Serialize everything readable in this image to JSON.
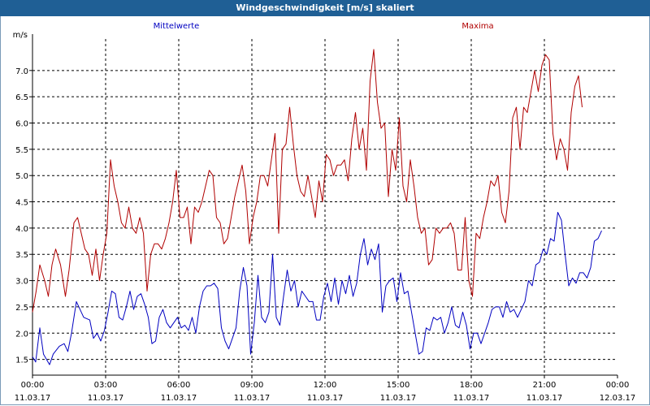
{
  "window": {
    "title": "Windgeschwindigkeit [m/s] skaliert"
  },
  "chart_data": {
    "type": "line",
    "ylabel": "m/s",
    "ylim": [
      1.2,
      7.6
    ],
    "yticks": [
      1.5,
      2.0,
      2.5,
      3.0,
      3.5,
      4.0,
      4.5,
      5.0,
      5.5,
      6.0,
      6.5,
      7.0
    ],
    "ytick_labels": [
      "1.5",
      "2.0",
      "2.5",
      "3.0",
      "3.5",
      "4.0",
      "4.5",
      "5.0",
      "5.5",
      "6.0",
      "6.5",
      "7.0"
    ],
    "xlim": [
      0,
      24
    ],
    "xticks": [
      {
        "hours": 0,
        "time": "00:00",
        "date": "11.03.17"
      },
      {
        "hours": 3,
        "time": "03:00",
        "date": "11.03.17"
      },
      {
        "hours": 6,
        "time": "06:00",
        "date": "11.03.17"
      },
      {
        "hours": 9,
        "time": "09:00",
        "date": "11.03.17"
      },
      {
        "hours": 12,
        "time": "12:00",
        "date": "11.03.17"
      },
      {
        "hours": 15,
        "time": "15:00",
        "date": "11.03.17"
      },
      {
        "hours": 18,
        "time": "18:00",
        "date": "11.03.17"
      },
      {
        "hours": 21,
        "time": "21:00",
        "date": "11.03.17"
      },
      {
        "hours": 24,
        "time": "00:00",
        "date": "12.03.17"
      }
    ],
    "grid": true,
    "series": [
      {
        "name": "Mittelwerte",
        "color": "#0000c0",
        "points": [
          [
            0.0,
            1.55
          ],
          [
            0.13,
            1.45
          ],
          [
            0.3,
            2.1
          ],
          [
            0.45,
            1.6
          ],
          [
            0.7,
            1.4
          ],
          [
            0.85,
            1.6
          ],
          [
            1.1,
            1.75
          ],
          [
            1.3,
            1.8
          ],
          [
            1.45,
            1.65
          ],
          [
            1.6,
            2.0
          ],
          [
            1.8,
            2.6
          ],
          [
            1.95,
            2.45
          ],
          [
            2.1,
            2.3
          ],
          [
            2.35,
            2.25
          ],
          [
            2.5,
            1.9
          ],
          [
            2.65,
            2.0
          ],
          [
            2.8,
            1.85
          ],
          [
            2.95,
            2.05
          ],
          [
            3.1,
            2.4
          ],
          [
            3.25,
            2.8
          ],
          [
            3.4,
            2.75
          ],
          [
            3.55,
            2.3
          ],
          [
            3.7,
            2.25
          ],
          [
            3.85,
            2.5
          ],
          [
            4.0,
            2.8
          ],
          [
            4.15,
            2.45
          ],
          [
            4.3,
            2.7
          ],
          [
            4.45,
            2.75
          ],
          [
            4.6,
            2.55
          ],
          [
            4.75,
            2.3
          ],
          [
            4.9,
            1.8
          ],
          [
            5.05,
            1.85
          ],
          [
            5.2,
            2.3
          ],
          [
            5.35,
            2.45
          ],
          [
            5.5,
            2.2
          ],
          [
            5.65,
            2.1
          ],
          [
            5.8,
            2.2
          ],
          [
            5.95,
            2.3
          ],
          [
            6.1,
            2.1
          ],
          [
            6.25,
            2.15
          ],
          [
            6.4,
            2.05
          ],
          [
            6.55,
            2.3
          ],
          [
            6.7,
            2.0
          ],
          [
            6.85,
            2.5
          ],
          [
            7.0,
            2.8
          ],
          [
            7.15,
            2.9
          ],
          [
            7.3,
            2.9
          ],
          [
            7.45,
            2.95
          ],
          [
            7.6,
            2.85
          ],
          [
            7.75,
            2.1
          ],
          [
            7.9,
            1.85
          ],
          [
            8.05,
            1.7
          ],
          [
            8.2,
            1.9
          ],
          [
            8.35,
            2.1
          ],
          [
            8.5,
            2.8
          ],
          [
            8.65,
            3.25
          ],
          [
            8.8,
            2.9
          ],
          [
            8.95,
            1.6
          ],
          [
            9.1,
            2.2
          ],
          [
            9.25,
            3.1
          ],
          [
            9.4,
            2.3
          ],
          [
            9.55,
            2.2
          ],
          [
            9.7,
            2.4
          ],
          [
            9.85,
            3.5
          ],
          [
            10.0,
            2.3
          ],
          [
            10.15,
            2.15
          ],
          [
            10.3,
            2.7
          ],
          [
            10.45,
            3.2
          ],
          [
            10.6,
            2.8
          ],
          [
            10.75,
            3.0
          ],
          [
            10.9,
            2.5
          ],
          [
            11.05,
            2.8
          ],
          [
            11.2,
            2.7
          ],
          [
            11.35,
            2.6
          ],
          [
            11.5,
            2.6
          ],
          [
            11.65,
            2.25
          ],
          [
            11.8,
            2.25
          ],
          [
            11.95,
            2.7
          ],
          [
            12.1,
            2.95
          ],
          [
            12.25,
            2.6
          ],
          [
            12.4,
            3.05
          ],
          [
            12.55,
            2.55
          ],
          [
            12.7,
            3.0
          ],
          [
            12.85,
            2.75
          ],
          [
            13.0,
            3.1
          ],
          [
            13.15,
            2.7
          ],
          [
            13.3,
            2.95
          ],
          [
            13.45,
            3.5
          ],
          [
            13.6,
            3.8
          ],
          [
            13.75,
            3.3
          ],
          [
            13.9,
            3.6
          ],
          [
            14.05,
            3.4
          ],
          [
            14.2,
            3.7
          ],
          [
            14.35,
            2.4
          ],
          [
            14.5,
            2.9
          ],
          [
            14.65,
            3.0
          ],
          [
            14.8,
            3.05
          ],
          [
            14.95,
            2.6
          ],
          [
            15.1,
            3.15
          ],
          [
            15.25,
            2.75
          ],
          [
            15.4,
            2.8
          ],
          [
            15.55,
            2.4
          ],
          [
            15.7,
            2.0
          ],
          [
            15.85,
            1.6
          ],
          [
            16.0,
            1.65
          ],
          [
            16.15,
            2.1
          ],
          [
            16.3,
            2.05
          ],
          [
            16.45,
            2.3
          ],
          [
            16.6,
            2.25
          ],
          [
            16.75,
            2.3
          ],
          [
            16.9,
            2.0
          ],
          [
            17.05,
            2.2
          ],
          [
            17.2,
            2.5
          ],
          [
            17.35,
            2.15
          ],
          [
            17.5,
            2.1
          ],
          [
            17.65,
            2.4
          ],
          [
            17.8,
            2.15
          ],
          [
            17.95,
            1.7
          ],
          [
            18.1,
            2.0
          ],
          [
            18.25,
            2.0
          ],
          [
            18.4,
            1.8
          ],
          [
            18.55,
            2.0
          ],
          [
            18.7,
            2.2
          ],
          [
            18.85,
            2.45
          ],
          [
            19.0,
            2.5
          ],
          [
            19.15,
            2.5
          ],
          [
            19.3,
            2.3
          ],
          [
            19.45,
            2.6
          ],
          [
            19.6,
            2.4
          ],
          [
            19.75,
            2.45
          ],
          [
            19.9,
            2.3
          ],
          [
            20.05,
            2.45
          ],
          [
            20.2,
            2.6
          ],
          [
            20.35,
            3.0
          ],
          [
            20.5,
            2.9
          ],
          [
            20.65,
            3.3
          ],
          [
            20.8,
            3.35
          ],
          [
            20.95,
            3.6
          ],
          [
            21.1,
            3.5
          ],
          [
            21.25,
            3.8
          ],
          [
            21.4,
            3.75
          ],
          [
            21.55,
            4.3
          ],
          [
            21.7,
            4.15
          ],
          [
            21.85,
            3.5
          ],
          [
            22.0,
            2.9
          ],
          [
            22.15,
            3.05
          ],
          [
            22.3,
            2.95
          ],
          [
            22.45,
            3.15
          ],
          [
            22.6,
            3.15
          ],
          [
            22.75,
            3.05
          ],
          [
            22.9,
            3.25
          ],
          [
            23.05,
            3.75
          ],
          [
            23.2,
            3.8
          ],
          [
            23.35,
            3.95
          ]
        ]
      },
      {
        "name": "Maxima",
        "color": "#b00000",
        "points": [
          [
            0.0,
            2.4
          ],
          [
            0.15,
            2.8
          ],
          [
            0.3,
            3.3
          ],
          [
            0.5,
            3.0
          ],
          [
            0.65,
            2.7
          ],
          [
            0.8,
            3.3
          ],
          [
            0.95,
            3.6
          ],
          [
            1.15,
            3.3
          ],
          [
            1.35,
            2.7
          ],
          [
            1.5,
            3.2
          ],
          [
            1.7,
            4.1
          ],
          [
            1.85,
            4.2
          ],
          [
            2.0,
            3.9
          ],
          [
            2.15,
            3.6
          ],
          [
            2.3,
            3.5
          ],
          [
            2.45,
            3.1
          ],
          [
            2.6,
            3.6
          ],
          [
            2.75,
            3.0
          ],
          [
            2.9,
            3.5
          ],
          [
            3.05,
            3.9
          ],
          [
            3.2,
            5.3
          ],
          [
            3.35,
            4.8
          ],
          [
            3.5,
            4.5
          ],
          [
            3.65,
            4.1
          ],
          [
            3.8,
            4.0
          ],
          [
            3.95,
            4.4
          ],
          [
            4.1,
            4.0
          ],
          [
            4.25,
            3.9
          ],
          [
            4.4,
            4.2
          ],
          [
            4.55,
            3.9
          ],
          [
            4.7,
            2.8
          ],
          [
            4.85,
            3.5
          ],
          [
            5.0,
            3.7
          ],
          [
            5.15,
            3.7
          ],
          [
            5.3,
            3.6
          ],
          [
            5.45,
            3.8
          ],
          [
            5.6,
            4.1
          ],
          [
            5.75,
            4.5
          ],
          [
            5.9,
            5.1
          ],
          [
            6.05,
            4.2
          ],
          [
            6.2,
            4.2
          ],
          [
            6.35,
            4.4
          ],
          [
            6.5,
            3.7
          ],
          [
            6.65,
            4.4
          ],
          [
            6.8,
            4.3
          ],
          [
            6.95,
            4.5
          ],
          [
            7.1,
            4.8
          ],
          [
            7.25,
            5.1
          ],
          [
            7.4,
            5.0
          ],
          [
            7.55,
            4.2
          ],
          [
            7.7,
            4.1
          ],
          [
            7.85,
            3.7
          ],
          [
            8.0,
            3.8
          ],
          [
            8.15,
            4.2
          ],
          [
            8.3,
            4.6
          ],
          [
            8.45,
            4.9
          ],
          [
            8.6,
            5.2
          ],
          [
            8.75,
            4.7
          ],
          [
            8.9,
            3.7
          ],
          [
            9.05,
            4.2
          ],
          [
            9.2,
            4.5
          ],
          [
            9.35,
            5.0
          ],
          [
            9.5,
            5.0
          ],
          [
            9.65,
            4.8
          ],
          [
            9.8,
            5.3
          ],
          [
            9.95,
            5.8
          ],
          [
            10.1,
            3.9
          ],
          [
            10.25,
            5.5
          ],
          [
            10.4,
            5.6
          ],
          [
            10.55,
            6.3
          ],
          [
            10.7,
            5.6
          ],
          [
            10.85,
            5.0
          ],
          [
            11.0,
            4.7
          ],
          [
            11.15,
            4.6
          ],
          [
            11.3,
            5.0
          ],
          [
            11.45,
            4.6
          ],
          [
            11.6,
            4.2
          ],
          [
            11.75,
            4.9
          ],
          [
            11.9,
            4.5
          ],
          [
            12.05,
            5.4
          ],
          [
            12.2,
            5.3
          ],
          [
            12.35,
            5.0
          ],
          [
            12.5,
            5.2
          ],
          [
            12.65,
            5.2
          ],
          [
            12.8,
            5.3
          ],
          [
            12.95,
            4.9
          ],
          [
            13.1,
            5.7
          ],
          [
            13.25,
            6.2
          ],
          [
            13.4,
            5.5
          ],
          [
            13.55,
            5.9
          ],
          [
            13.7,
            5.1
          ],
          [
            13.85,
            6.8
          ],
          [
            14.0,
            7.4
          ],
          [
            14.15,
            6.4
          ],
          [
            14.3,
            5.9
          ],
          [
            14.45,
            6.0
          ],
          [
            14.6,
            4.6
          ],
          [
            14.75,
            5.5
          ],
          [
            14.9,
            5.1
          ],
          [
            15.05,
            6.1
          ],
          [
            15.2,
            4.8
          ],
          [
            15.35,
            4.5
          ],
          [
            15.5,
            5.3
          ],
          [
            15.65,
            4.8
          ],
          [
            15.8,
            4.2
          ],
          [
            15.95,
            3.9
          ],
          [
            16.1,
            4.0
          ],
          [
            16.25,
            3.3
          ],
          [
            16.4,
            3.4
          ],
          [
            16.55,
            4.0
          ],
          [
            16.7,
            3.9
          ],
          [
            16.85,
            4.0
          ],
          [
            17.0,
            4.0
          ],
          [
            17.15,
            4.1
          ],
          [
            17.3,
            3.9
          ],
          [
            17.45,
            3.2
          ],
          [
            17.6,
            3.2
          ],
          [
            17.75,
            4.2
          ],
          [
            17.9,
            3.0
          ],
          [
            18.05,
            2.7
          ],
          [
            18.2,
            3.9
          ],
          [
            18.35,
            3.8
          ],
          [
            18.5,
            4.2
          ],
          [
            18.65,
            4.5
          ],
          [
            18.8,
            4.9
          ],
          [
            18.95,
            4.8
          ],
          [
            19.1,
            5.0
          ],
          [
            19.25,
            4.3
          ],
          [
            19.4,
            4.1
          ],
          [
            19.55,
            4.7
          ],
          [
            19.7,
            6.1
          ],
          [
            19.85,
            6.3
          ],
          [
            20.0,
            5.5
          ],
          [
            20.15,
            6.3
          ],
          [
            20.3,
            6.2
          ],
          [
            20.45,
            6.6
          ],
          [
            20.6,
            7.0
          ],
          [
            20.75,
            6.6
          ],
          [
            20.9,
            7.1
          ],
          [
            21.05,
            7.3
          ],
          [
            21.2,
            7.2
          ],
          [
            21.35,
            5.8
          ],
          [
            21.5,
            5.3
          ],
          [
            21.65,
            5.7
          ],
          [
            21.8,
            5.5
          ],
          [
            21.95,
            5.1
          ],
          [
            22.1,
            6.2
          ],
          [
            22.25,
            6.7
          ],
          [
            22.4,
            6.9
          ],
          [
            22.55,
            6.3
          ]
        ]
      }
    ]
  }
}
